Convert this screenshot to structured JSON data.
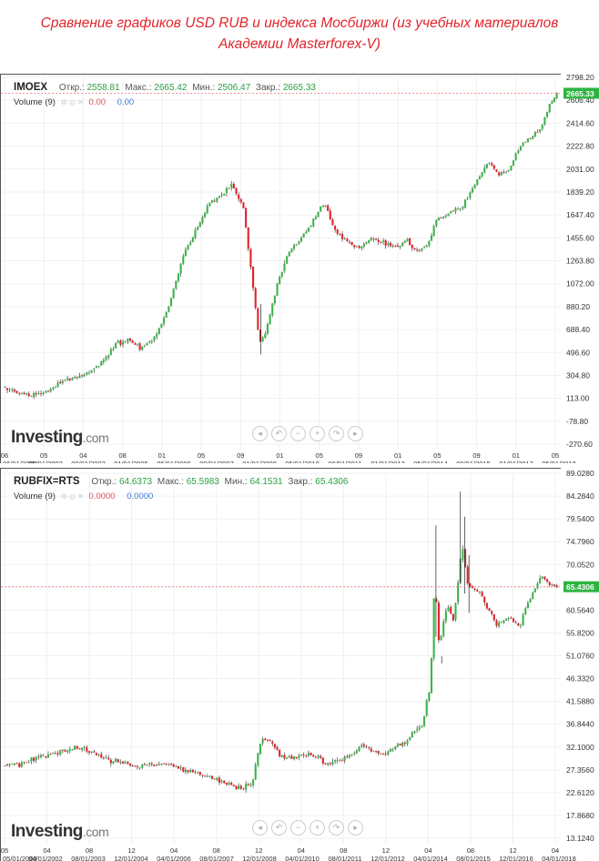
{
  "title": {
    "line1": "Сравнение графиков USD RUB и индекса Мосбиржи (из учебных материалов",
    "line2": "Академии Masterforex-V)"
  },
  "brand": {
    "main": "Investing",
    "suffix": ".com"
  },
  "controls": [
    "◂",
    "↶",
    "−",
    "+",
    "↷",
    "▸"
  ],
  "colors": {
    "up": "#3cb44b",
    "down": "#e3232e",
    "last_price_bg": "#2eb340",
    "grid": "#f0f0f0"
  },
  "chart_data": [
    {
      "type": "candlestick",
      "symbol": "IMOEX",
      "ohlc": {
        "open_label": "Откр.:",
        "open": "2558.81",
        "high_label": "Макс.:",
        "high": "2665.42",
        "low_label": "Мин.:",
        "low": "2506.47",
        "close_label": "Закр.:",
        "close": "2665.33"
      },
      "volume": {
        "label": "Volume (9)",
        "v1": "0.00",
        "v2": "0.00"
      },
      "last_price": "2665.33",
      "last_value": 2665.33,
      "y_ticks": [
        "2798.20",
        "2606.40",
        "2414.60",
        "2222.80",
        "2031.00",
        "1839.20",
        "1647.40",
        "1455.60",
        "1263.80",
        "1072.00",
        "880.20",
        "688.40",
        "496.60",
        "304.80",
        "113.00",
        "-78.80",
        "-270.60"
      ],
      "ylim": [
        -270.6,
        2798.2
      ],
      "x_ticks_top": [
        "06",
        "05",
        "04",
        "08",
        "01",
        "05",
        "09",
        "01",
        "05",
        "09",
        "01",
        "05",
        "09",
        "01",
        "05"
      ],
      "x_ticks_bottom": [
        "06/01/2000",
        "05/01/2002",
        "09/01/2003",
        "01/01/2005",
        "05/01/2006",
        "09/01/2007",
        "01/01/2009",
        "05/01/2010",
        "09/01/2011",
        "01/01/2013",
        "05/01/2014",
        "09/01/2015",
        "01/01/2017",
        "05/01/2018"
      ],
      "series_path": [
        [
          2000.0,
          200
        ],
        [
          2000.6,
          160
        ],
        [
          2001.0,
          140
        ],
        [
          2001.6,
          180
        ],
        [
          2002.0,
          240
        ],
        [
          2002.5,
          290
        ],
        [
          2003.0,
          330
        ],
        [
          2003.5,
          430
        ],
        [
          2004.0,
          580
        ],
        [
          2004.4,
          600
        ],
        [
          2004.8,
          530
        ],
        [
          2005.3,
          620
        ],
        [
          2005.8,
          880
        ],
        [
          2006.3,
          1320
        ],
        [
          2006.7,
          1500
        ],
        [
          2007.2,
          1750
        ],
        [
          2007.6,
          1800
        ],
        [
          2008.0,
          1900
        ],
        [
          2008.4,
          1700
        ],
        [
          2008.7,
          1100
        ],
        [
          2008.95,
          560
        ],
        [
          2009.2,
          700
        ],
        [
          2009.6,
          1100
        ],
        [
          2010.0,
          1350
        ],
        [
          2010.4,
          1450
        ],
        [
          2010.8,
          1600
        ],
        [
          2011.2,
          1760
        ],
        [
          2011.6,
          1500
        ],
        [
          2012.0,
          1430
        ],
        [
          2012.4,
          1370
        ],
        [
          2012.8,
          1450
        ],
        [
          2013.2,
          1420
        ],
        [
          2013.7,
          1380
        ],
        [
          2014.1,
          1450
        ],
        [
          2014.4,
          1330
        ],
        [
          2014.8,
          1400
        ],
        [
          2015.1,
          1600
        ],
        [
          2015.6,
          1670
        ],
        [
          2016.0,
          1720
        ],
        [
          2016.5,
          1920
        ],
        [
          2016.9,
          2100
        ],
        [
          2017.2,
          2000
        ],
        [
          2017.6,
          2010
        ],
        [
          2018.0,
          2220
        ],
        [
          2018.4,
          2300
        ],
        [
          2018.8,
          2400
        ],
        [
          2019.1,
          2600
        ],
        [
          2019.3,
          2665
        ]
      ]
    },
    {
      "type": "candlestick",
      "symbol": "RUBFIX=RTS",
      "ohlc": {
        "open_label": "Откр.:",
        "open": "64.6373",
        "high_label": "Макс.:",
        "high": "65.5983",
        "low_label": "Мин.:",
        "low": "64.1531",
        "close_label": "Закр.:",
        "close": "65.4306"
      },
      "volume": {
        "label": "Volume (9)",
        "v1": "0.0000",
        "v2": "0.0000"
      },
      "last_price": "65.4306",
      "last_value": 65.4306,
      "y_ticks": [
        "89.0280",
        "84.2840",
        "79.5400",
        "74.7960",
        "70.0520",
        "65.3080",
        "60.5640",
        "55.8200",
        "51.0760",
        "46.3320",
        "41.5880",
        "36.8440",
        "32.1000",
        "27.3560",
        "22.6120",
        "17.8680",
        "13.1240"
      ],
      "ylim": [
        13.124,
        89.028
      ],
      "x_ticks_top": [
        "05",
        "04",
        "08",
        "12",
        "04",
        "08",
        "12",
        "04",
        "08",
        "12",
        "04",
        "08",
        "12",
        "04"
      ],
      "x_ticks_bottom": [
        "05/01/2000",
        "04/01/2002",
        "08/01/2003",
        "12/01/2004",
        "04/01/2006",
        "08/01/2007",
        "12/01/2008",
        "04/01/2010",
        "08/01/2011",
        "12/01/2012",
        "04/01/2014",
        "08/01/2015",
        "12/01/2016",
        "04/01/2018"
      ],
      "series_path": [
        [
          2000.0,
          28.2
        ],
        [
          2000.6,
          28.5
        ],
        [
          2001.2,
          29.8
        ],
        [
          2001.8,
          31.0
        ],
        [
          2002.3,
          31.6
        ],
        [
          2002.8,
          31.8
        ],
        [
          2003.3,
          30.5
        ],
        [
          2003.8,
          29.3
        ],
        [
          2004.3,
          28.7
        ],
        [
          2004.8,
          28.2
        ],
        [
          2005.3,
          28.3
        ],
        [
          2005.8,
          28.6
        ],
        [
          2006.3,
          27.3
        ],
        [
          2006.8,
          26.6
        ],
        [
          2007.3,
          25.7
        ],
        [
          2007.8,
          24.6
        ],
        [
          2008.3,
          23.4
        ],
        [
          2008.7,
          24.8
        ],
        [
          2009.0,
          33.5
        ],
        [
          2009.3,
          33.5
        ],
        [
          2009.7,
          30.2
        ],
        [
          2010.2,
          30.0
        ],
        [
          2010.6,
          30.8
        ],
        [
          2011.0,
          30.0
        ],
        [
          2011.3,
          28.5
        ],
        [
          2011.7,
          29.0
        ],
        [
          2012.1,
          30.2
        ],
        [
          2012.5,
          32.5
        ],
        [
          2012.9,
          31.0
        ],
        [
          2013.3,
          30.7
        ],
        [
          2013.7,
          32.5
        ],
        [
          2014.0,
          33.0
        ],
        [
          2014.3,
          35.2
        ],
        [
          2014.6,
          36.5
        ],
        [
          2014.9,
          45.0
        ],
        [
          2015.05,
          68.0
        ],
        [
          2015.2,
          53.0
        ],
        [
          2015.5,
          62.0
        ],
        [
          2015.7,
          58.0
        ],
        [
          2016.0,
          74.0
        ],
        [
          2016.2,
          66.0
        ],
        [
          2016.6,
          64.5
        ],
        [
          2016.9,
          61.0
        ],
        [
          2017.2,
          57.5
        ],
        [
          2017.6,
          58.8
        ],
        [
          2018.0,
          57.2
        ],
        [
          2018.3,
          62.0
        ],
        [
          2018.5,
          64.8
        ],
        [
          2018.8,
          67.5
        ],
        [
          2019.0,
          66.0
        ],
        [
          2019.3,
          65.43
        ]
      ]
    }
  ]
}
